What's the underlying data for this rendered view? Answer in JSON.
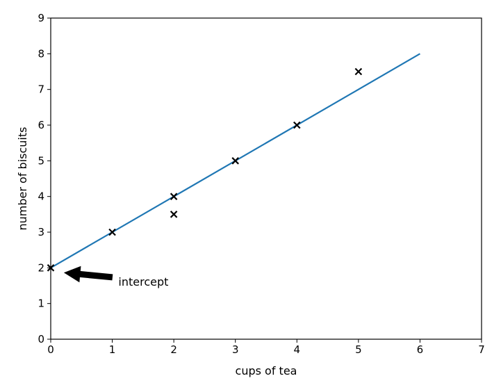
{
  "chart_data": {
    "type": "scatter",
    "title": "",
    "xlabel": "cups of tea",
    "ylabel": "number of biscuits",
    "xlim": [
      0,
      7
    ],
    "ylim": [
      0,
      9
    ],
    "xticks": [
      0,
      1,
      2,
      3,
      4,
      5,
      6,
      7
    ],
    "yticks": [
      0,
      1,
      2,
      3,
      4,
      5,
      6,
      7,
      8,
      9
    ],
    "grid": false,
    "series": [
      {
        "type": "scatter",
        "marker": "x",
        "color": "#000000",
        "points": [
          [
            0,
            2
          ],
          [
            1,
            3
          ],
          [
            2,
            4
          ],
          [
            2,
            3.5
          ],
          [
            3,
            5
          ],
          [
            4,
            6
          ],
          [
            5,
            7.5
          ]
        ]
      },
      {
        "type": "line",
        "color": "#1f77b4",
        "points": [
          [
            0,
            2
          ],
          [
            6,
            8
          ]
        ]
      }
    ],
    "annotations": [
      {
        "text": "intercept",
        "point": [
          0,
          2
        ],
        "text_at": [
          1.1,
          1.6
        ],
        "arrow_color": "#000000"
      }
    ]
  }
}
